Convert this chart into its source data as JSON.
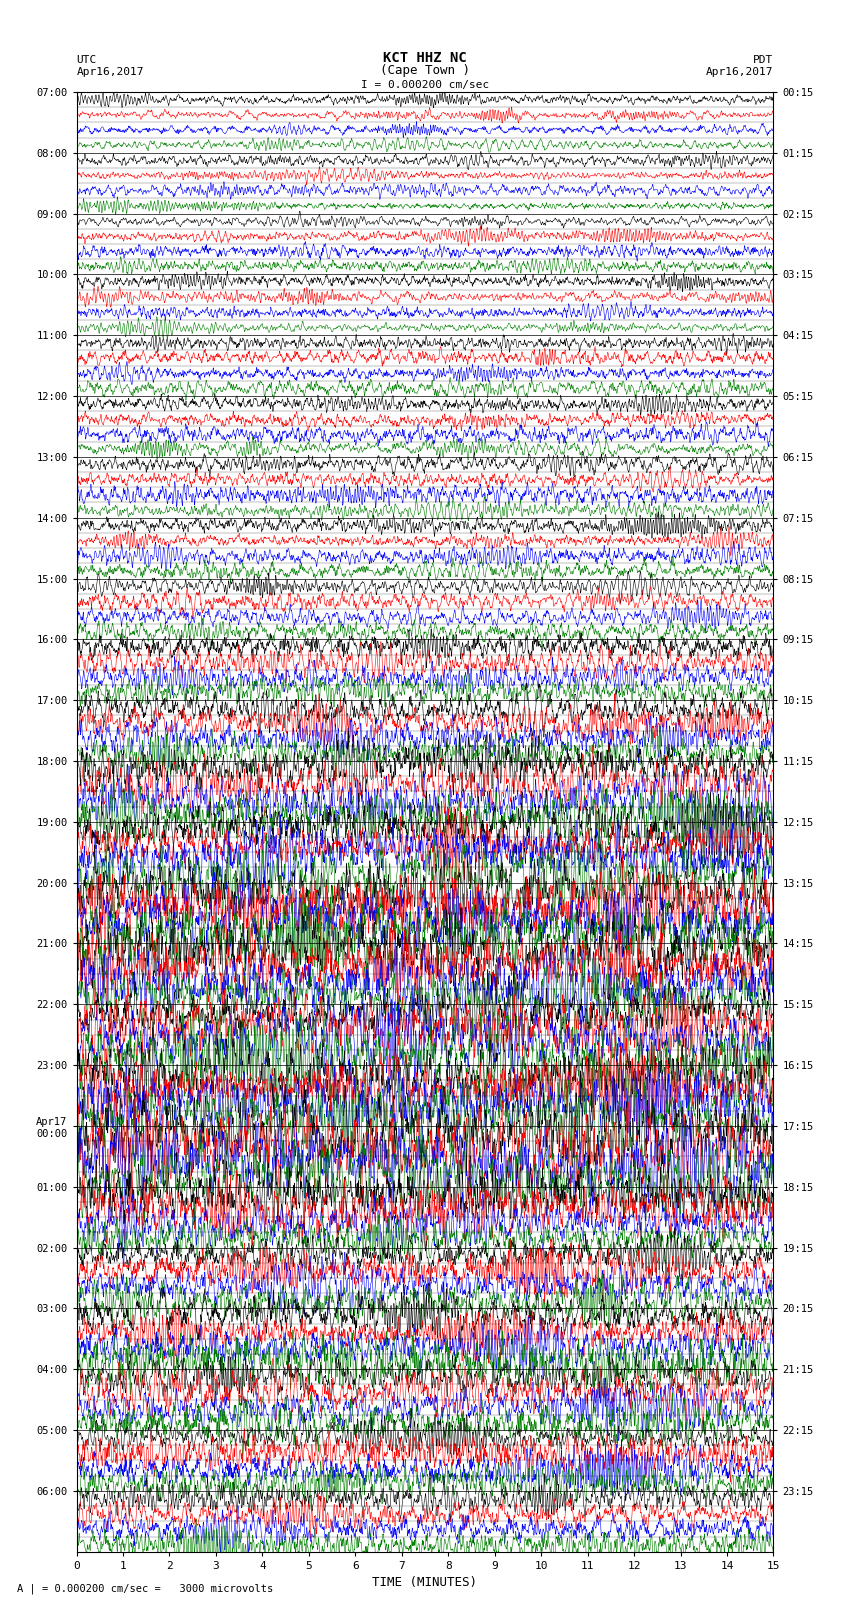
{
  "title_line1": "KCT HHZ NC",
  "title_line2": "(Cape Town )",
  "scale_label": "I = 0.000200 cm/sec",
  "bottom_label": "A | = 0.000200 cm/sec =   3000 microvolts",
  "xlabel": "TIME (MINUTES)",
  "utc_label": "UTC\nApr16,2017",
  "pdt_label": "PDT\nApr16,2017",
  "left_times": [
    "07:00",
    "08:00",
    "09:00",
    "10:00",
    "11:00",
    "12:00",
    "13:00",
    "14:00",
    "15:00",
    "16:00",
    "17:00",
    "18:00",
    "19:00",
    "20:00",
    "21:00",
    "22:00",
    "23:00",
    "Apr17\n00:00",
    "01:00",
    "02:00",
    "03:00",
    "04:00",
    "05:00",
    "06:00"
  ],
  "right_times": [
    "00:15",
    "01:15",
    "02:15",
    "03:15",
    "04:15",
    "05:15",
    "06:15",
    "07:15",
    "08:15",
    "09:15",
    "10:15",
    "11:15",
    "12:15",
    "13:15",
    "14:15",
    "15:15",
    "16:15",
    "17:15",
    "18:15",
    "19:15",
    "20:15",
    "21:15",
    "22:15",
    "23:15"
  ],
  "n_rows": 24,
  "n_cols": 2700,
  "colors": [
    "black",
    "red",
    "blue",
    "green"
  ],
  "bg_color": "white",
  "font_family": "monospace",
  "fig_width": 8.5,
  "fig_height": 16.13,
  "xticks": [
    0,
    1,
    2,
    3,
    4,
    5,
    6,
    7,
    8,
    9,
    10,
    11,
    12,
    13,
    14,
    15
  ],
  "noise_seed": 42,
  "amplitude_base": [
    1.0,
    1.1,
    1.2,
    1.3,
    1.4,
    1.5,
    1.6,
    1.8,
    2.0,
    2.5,
    3.5,
    4.5,
    5.5,
    6.0,
    6.5,
    6.8,
    7.0,
    7.5,
    5.0,
    4.0,
    4.5,
    4.0,
    3.5,
    3.0
  ]
}
